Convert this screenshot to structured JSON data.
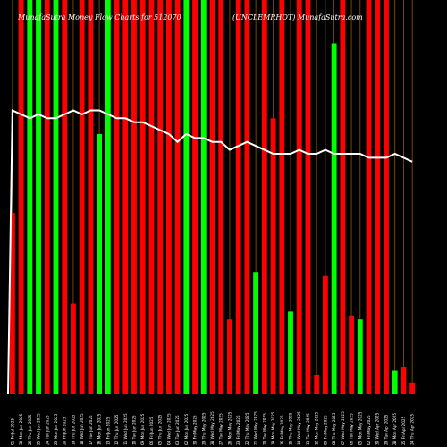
{
  "page": {
    "background": "#000000"
  },
  "chart_data": {
    "type": "bar",
    "title_left": "MunafaSutra Money Flow Charts for 512070",
    "title_right": "(UNCLEMRHOT) MunafaSutra.com",
    "colors": {
      "up": "#00ff00",
      "down": "#ff0000",
      "line": "#ffffff",
      "grid": "#8b5a00"
    },
    "ylim": [
      0,
      100
    ],
    "bars": [
      {
        "label": "01 Fri Jul 2025",
        "value": 46,
        "color": "down"
      },
      {
        "label": "30 Mon Jun 2025",
        "value": 100,
        "color": "down"
      },
      {
        "label": "26 Thu Jun 2025",
        "value": 100,
        "color": "up"
      },
      {
        "label": "25 Wed Jun 2025",
        "value": 100,
        "color": "up"
      },
      {
        "label": "24 Tue Jun 2025",
        "value": 100,
        "color": "down"
      },
      {
        "label": "23 Mon Jun 2025",
        "value": 100,
        "color": "up"
      },
      {
        "label": "20 Fri Jun 2025",
        "value": 100,
        "color": "down"
      },
      {
        "label": "19 Thu Jun 2025",
        "value": 23,
        "color": "down"
      },
      {
        "label": "18 Wed Jun 2025",
        "value": 100,
        "color": "down"
      },
      {
        "label": "17 Tue Jun 2025",
        "value": 100,
        "color": "down"
      },
      {
        "label": "16 Mon Jun 2025",
        "value": 66,
        "color": "up"
      },
      {
        "label": "13 Fri Jun 2025",
        "value": 100,
        "color": "up"
      },
      {
        "label": "12 Thu Jun 2025",
        "value": 100,
        "color": "down"
      },
      {
        "label": "11 Wed Jun 2025",
        "value": 100,
        "color": "down"
      },
      {
        "label": "10 Tue Jun 2025",
        "value": 100,
        "color": "down"
      },
      {
        "label": "09 Mon Jun 2025",
        "value": 100,
        "color": "down"
      },
      {
        "label": "06 Fri Jun 2025",
        "value": 100,
        "color": "down"
      },
      {
        "label": "05 Thu Jun 2025",
        "value": 100,
        "color": "down"
      },
      {
        "label": "04 Wed Jun 2025",
        "value": 100,
        "color": "down"
      },
      {
        "label": "03 Tue Jun 2025",
        "value": 100,
        "color": "down"
      },
      {
        "label": "02 Mon Jun 2025",
        "value": 100,
        "color": "up"
      },
      {
        "label": "30 Fri May 2025",
        "value": 100,
        "color": "down"
      },
      {
        "label": "29 Thu May 2025",
        "value": 100,
        "color": "up"
      },
      {
        "label": "28 Wed May 2025",
        "value": 100,
        "color": "down"
      },
      {
        "label": "27 Tue May 2025",
        "value": 100,
        "color": "down"
      },
      {
        "label": "26 Mon May 2025",
        "value": 19,
        "color": "down"
      },
      {
        "label": "23 Fri May 2025",
        "value": 100,
        "color": "down"
      },
      {
        "label": "22 Thu May 2025",
        "value": 100,
        "color": "down"
      },
      {
        "label": "21 Wed May 2025",
        "value": 31,
        "color": "up"
      },
      {
        "label": "20 Tue May 2025",
        "value": 100,
        "color": "down"
      },
      {
        "label": "19 Mon May 2025",
        "value": 70,
        "color": "down"
      },
      {
        "label": "16 Fri May 2025",
        "value": 100,
        "color": "down"
      },
      {
        "label": "15 Thu May 2025",
        "value": 21,
        "color": "up"
      },
      {
        "label": "14 Wed May 2025",
        "value": 100,
        "color": "down"
      },
      {
        "label": "13 Tue May 2025",
        "value": 100,
        "color": "down"
      },
      {
        "label": "12 Mon May 2025",
        "value": 5,
        "color": "down"
      },
      {
        "label": "09 Fri May 2025",
        "value": 30,
        "color": "down"
      },
      {
        "label": "08 Thu May 2025",
        "value": 89,
        "color": "up"
      },
      {
        "label": "07 Wed May 2025",
        "value": 100,
        "color": "down"
      },
      {
        "label": "06 Tue May 2025",
        "value": 20,
        "color": "down"
      },
      {
        "label": "05 Mon May 2025",
        "value": 19,
        "color": "up"
      },
      {
        "label": "02 Fri May 2025",
        "value": 100,
        "color": "down"
      },
      {
        "label": "30 Wed Apr 2025",
        "value": 100,
        "color": "down"
      },
      {
        "label": "29 Tue Apr 2025",
        "value": 100,
        "color": "down"
      },
      {
        "label": "28 Mon Apr 2025",
        "value": 6,
        "color": "up"
      },
      {
        "label": "25 Fri Apr 2025",
        "value": 7,
        "color": "down"
      },
      {
        "label": "24 Thu Apr 2025",
        "value": 3,
        "color": "down"
      }
    ],
    "line": [
      72,
      71,
      70,
      71,
      70,
      70,
      71,
      72,
      71,
      72,
      72,
      71,
      70,
      70,
      69,
      69,
      68,
      67,
      66,
      64,
      66,
      65,
      65,
      64,
      64,
      62,
      63,
      64,
      63,
      62,
      61,
      61,
      61,
      62,
      61,
      61,
      62,
      61,
      61,
      61,
      61,
      60,
      60,
      60,
      61,
      60,
      59
    ]
  }
}
